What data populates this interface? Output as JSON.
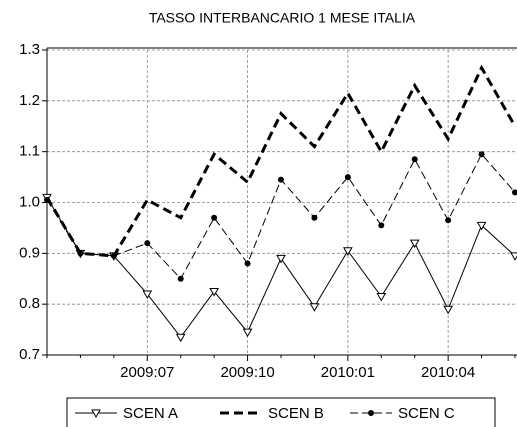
{
  "chart_data": {
    "type": "line",
    "title": "TASSO INTERBANCARIO 1 MESE ITALIA",
    "categories": [
      null,
      null,
      null,
      "2009:07",
      null,
      null,
      "2009:10",
      null,
      null,
      "2010:01",
      null,
      null,
      "2010:04",
      null,
      null
    ],
    "series": [
      {
        "name": "SCEN A",
        "color": "#000000",
        "style": "solid",
        "marker": "triangle",
        "values": [
          1.01,
          0.9,
          0.895,
          0.82,
          0.735,
          0.825,
          0.745,
          0.89,
          0.795,
          0.905,
          0.815,
          0.92,
          0.79,
          0.955,
          0.895
        ]
      },
      {
        "name": "SCEN B",
        "color": "#000000",
        "style": "bold-dash",
        "marker": "none",
        "values": [
          1.01,
          0.9,
          0.895,
          1.005,
          0.97,
          1.095,
          1.04,
          1.175,
          1.11,
          1.215,
          1.1,
          1.23,
          1.125,
          1.265,
          1.15
        ]
      },
      {
        "name": "SCEN C",
        "color": "#000000",
        "style": "dash",
        "marker": "dot",
        "values": [
          1.005,
          0.9,
          0.895,
          0.92,
          0.85,
          0.97,
          0.88,
          1.045,
          0.97,
          1.05,
          0.955,
          1.085,
          0.965,
          1.095,
          1.02
        ]
      }
    ],
    "ylim": [
      0.7,
      1.3
    ],
    "yticks": [
      0.7,
      0.8,
      0.9,
      {
        "value": 1,
        "label": "1.0"
      },
      1.1,
      1.2,
      1.3
    ],
    "grid": true,
    "legend": "bottom"
  }
}
